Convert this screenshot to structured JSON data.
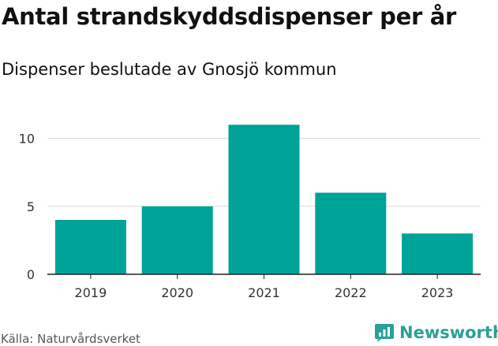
{
  "title": "Antal strandskyddsdispenser per år",
  "subtitle": "Dispenser beslutade av Gnosjö kommun",
  "source": "Källa: Naturvårdsverket",
  "brand": {
    "name": "Newsworthy",
    "icon": "newsworthy-chart-bubble-icon"
  },
  "colors": {
    "bar": "#00a398",
    "grid": "#d9d9d9",
    "axis": "#222222",
    "brand": "#2aa198"
  },
  "chart_data": {
    "type": "bar",
    "categories": [
      "2019",
      "2020",
      "2021",
      "2022",
      "2023"
    ],
    "values": [
      4,
      5,
      11,
      6,
      3
    ],
    "title": "Antal strandskyddsdispenser per år",
    "subtitle": "Dispenser beslutade av Gnosjö kommun",
    "xlabel": "",
    "ylabel": "",
    "ylim": [
      0,
      11
    ],
    "yticks": [
      0,
      5,
      10
    ],
    "grid": true,
    "legend": "none"
  }
}
